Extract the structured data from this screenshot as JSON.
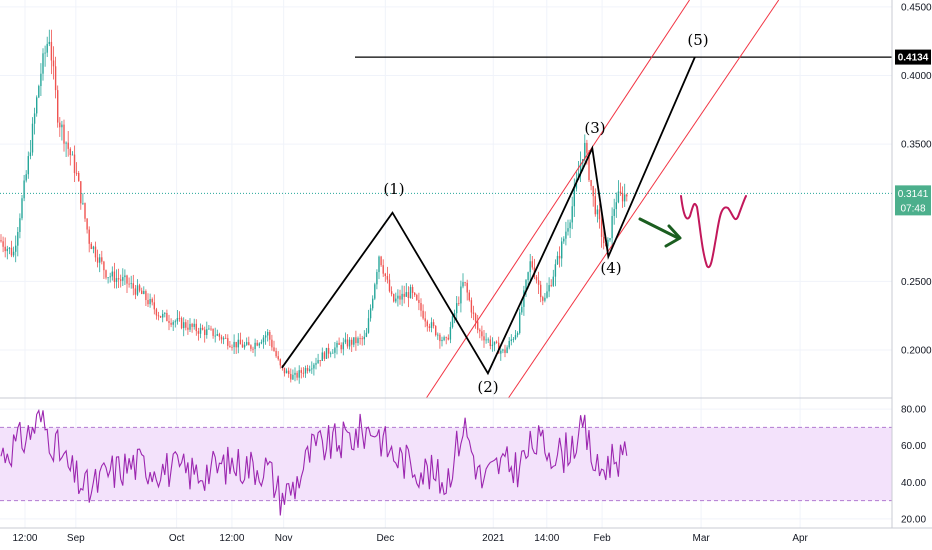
{
  "chart_data": [
    {
      "type": "candlestick",
      "x_labels": [
        "12:00",
        "Sep",
        "Oct",
        "12:00",
        "Nov",
        "Dec",
        "2021",
        "14:00",
        "Feb",
        "Mar",
        "Apr"
      ],
      "y_ticks": [
        "0.4500",
        "0.4000",
        "0.3500",
        "0.2500",
        "0.2000"
      ],
      "ylim": [
        0.165,
        0.455
      ],
      "price_series": [
        [
          0.0,
          0.28
        ],
        [
          0.015,
          0.27
        ],
        [
          0.03,
          0.33
        ],
        [
          0.045,
          0.4
        ],
        [
          0.055,
          0.43
        ],
        [
          0.065,
          0.37
        ],
        [
          0.085,
          0.33
        ],
        [
          0.1,
          0.28
        ],
        [
          0.12,
          0.255
        ],
        [
          0.14,
          0.25
        ],
        [
          0.16,
          0.24
        ],
        [
          0.18,
          0.225
        ],
        [
          0.2,
          0.22
        ],
        [
          0.22,
          0.215
        ],
        [
          0.24,
          0.212
        ],
        [
          0.26,
          0.205
        ],
        [
          0.28,
          0.202
        ],
        [
          0.3,
          0.212
        ],
        [
          0.315,
          0.186
        ],
        [
          0.33,
          0.18
        ],
        [
          0.35,
          0.19
        ],
        [
          0.37,
          0.2
        ],
        [
          0.39,
          0.205
        ],
        [
          0.41,
          0.208
        ],
        [
          0.425,
          0.27
        ],
        [
          0.44,
          0.235
        ],
        [
          0.46,
          0.242
        ],
        [
          0.48,
          0.22
        ],
        [
          0.5,
          0.205
        ],
        [
          0.52,
          0.25
        ],
        [
          0.535,
          0.215
        ],
        [
          0.55,
          0.205
        ],
        [
          0.565,
          0.198
        ],
        [
          0.58,
          0.215
        ],
        [
          0.595,
          0.265
        ],
        [
          0.61,
          0.235
        ],
        [
          0.625,
          0.265
        ],
        [
          0.64,
          0.3
        ],
        [
          0.655,
          0.35
        ],
        [
          0.665,
          0.31
        ],
        [
          0.68,
          0.27
        ],
        [
          0.69,
          0.31
        ],
        [
          0.705,
          0.314
        ]
      ],
      "last_price": "0.3141",
      "countdown": "07:48",
      "target_price": "0.4134",
      "wave_labels": [
        "(1)",
        "(2)",
        "(3)",
        "(4)",
        "(5)"
      ],
      "colors": {
        "up": "#26a69a",
        "down": "#ef5350",
        "channel": "#f23645",
        "wave_line": "#000000",
        "last_price_badge": "#4caf8c",
        "arrow": "#1b5e20",
        "projection": "#c2185b"
      }
    },
    {
      "type": "line",
      "y_ticks": [
        "80.00",
        "60.00",
        "40.00",
        "20.00"
      ],
      "ylim": [
        15,
        85
      ],
      "band": [
        30,
        70
      ],
      "rsi_anchor_values": [
        [
          0.0,
          55
        ],
        [
          0.03,
          65
        ],
        [
          0.045,
          75
        ],
        [
          0.06,
          62
        ],
        [
          0.08,
          45
        ],
        [
          0.1,
          35
        ],
        [
          0.12,
          45
        ],
        [
          0.15,
          50
        ],
        [
          0.18,
          48
        ],
        [
          0.22,
          45
        ],
        [
          0.26,
          50
        ],
        [
          0.3,
          48
        ],
        [
          0.315,
          32
        ],
        [
          0.33,
          38
        ],
        [
          0.35,
          58
        ],
        [
          0.38,
          62
        ],
        [
          0.42,
          70
        ],
        [
          0.44,
          55
        ],
        [
          0.47,
          48
        ],
        [
          0.5,
          40
        ],
        [
          0.52,
          72
        ],
        [
          0.54,
          40
        ],
        [
          0.56,
          50
        ],
        [
          0.58,
          48
        ],
        [
          0.6,
          62
        ],
        [
          0.63,
          55
        ],
        [
          0.655,
          68
        ],
        [
          0.67,
          45
        ],
        [
          0.69,
          55
        ],
        [
          0.705,
          50
        ]
      ],
      "colors": {
        "line": "#9c27b0",
        "band_fill": "#f3e2fb",
        "band_border": "#b27bd1"
      }
    }
  ]
}
